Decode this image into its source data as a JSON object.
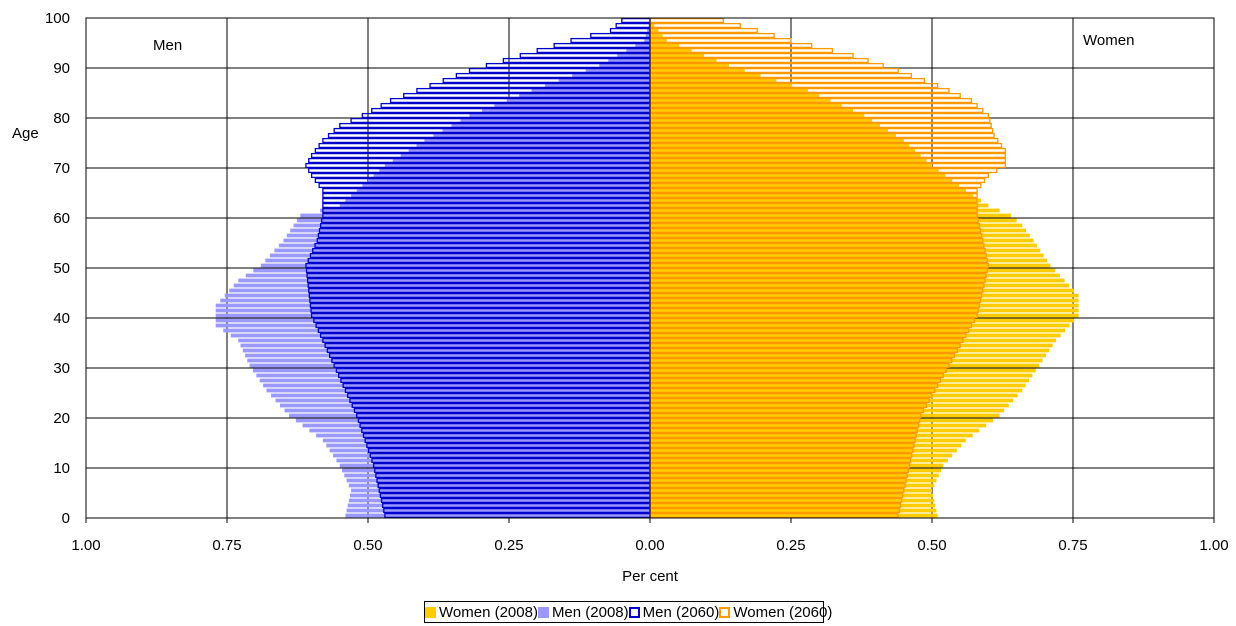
{
  "chart_data": {
    "type": "bar",
    "orientation": "horizontal-population-pyramid",
    "title": "",
    "xlabel": "Per cent",
    "ylabel": "Age",
    "corner_labels": {
      "left": "Men",
      "right": "Women"
    },
    "xlim": [
      -1.0,
      1.0
    ],
    "ylim": [
      0,
      100
    ],
    "x_ticks": [
      -1.0,
      -0.75,
      -0.5,
      -0.25,
      0,
      0.25,
      0.5,
      0.75,
      1.0
    ],
    "x_tick_labels": [
      "1.00",
      "0.75",
      "0.50",
      "0.25",
      "0.00",
      "0.25",
      "0.50",
      "0.75",
      "1.00"
    ],
    "y_ticks": [
      0,
      10,
      20,
      30,
      40,
      50,
      60,
      70,
      80,
      90,
      100
    ],
    "y_tick_labels": [
      "0",
      "10",
      "20",
      "30",
      "40",
      "50",
      "60",
      "70",
      "80",
      "90",
      "100"
    ],
    "grid": true,
    "legend_position": "bottom",
    "ages_from": 0,
    "ages_to": 99,
    "series": [
      {
        "name": "Women (2008)",
        "side": "right",
        "style": "filled",
        "color": "#FFCC00",
        "profile": [
          [
            0,
            0.51
          ],
          [
            5,
            0.5
          ],
          [
            10,
            0.52
          ],
          [
            15,
            0.56
          ],
          [
            20,
            0.62
          ],
          [
            25,
            0.66
          ],
          [
            30,
            0.69
          ],
          [
            35,
            0.72
          ],
          [
            40,
            0.76
          ],
          [
            44,
            0.76
          ],
          [
            50,
            0.71
          ],
          [
            55,
            0.68
          ],
          [
            58,
            0.66
          ],
          [
            60,
            0.64
          ],
          [
            62,
            0.6
          ],
          [
            65,
            0.56
          ],
          [
            70,
            0.5
          ],
          [
            75,
            0.45
          ],
          [
            80,
            0.38
          ],
          [
            85,
            0.28
          ],
          [
            90,
            0.14
          ],
          [
            95,
            0.03
          ],
          [
            99,
            0.0
          ]
        ]
      },
      {
        "name": "Men (2008)",
        "side": "left",
        "style": "filled",
        "color": "#9999FF",
        "profile": [
          [
            0,
            0.54
          ],
          [
            5,
            0.53
          ],
          [
            10,
            0.55
          ],
          [
            15,
            0.58
          ],
          [
            20,
            0.64
          ],
          [
            25,
            0.68
          ],
          [
            30,
            0.71
          ],
          [
            35,
            0.73
          ],
          [
            38,
            0.77
          ],
          [
            42,
            0.77
          ],
          [
            47,
            0.73
          ],
          [
            50,
            0.69
          ],
          [
            55,
            0.65
          ],
          [
            60,
            0.62
          ],
          [
            62,
            0.55
          ],
          [
            65,
            0.52
          ],
          [
            70,
            0.47
          ],
          [
            75,
            0.4
          ],
          [
            80,
            0.32
          ],
          [
            85,
            0.21
          ],
          [
            90,
            0.09
          ],
          [
            95,
            0.01
          ],
          [
            99,
            0.0
          ]
        ]
      },
      {
        "name": "Men (2060)",
        "side": "left",
        "style": "outline",
        "color": "#0000CC",
        "profile": [
          [
            0,
            0.47
          ],
          [
            10,
            0.49
          ],
          [
            20,
            0.52
          ],
          [
            30,
            0.56
          ],
          [
            40,
            0.6
          ],
          [
            50,
            0.61
          ],
          [
            55,
            0.59
          ],
          [
            60,
            0.58
          ],
          [
            65,
            0.58
          ],
          [
            68,
            0.6
          ],
          [
            70,
            0.61
          ],
          [
            72,
            0.6
          ],
          [
            75,
            0.58
          ],
          [
            78,
            0.55
          ],
          [
            80,
            0.51
          ],
          [
            83,
            0.46
          ],
          [
            86,
            0.39
          ],
          [
            89,
            0.32
          ],
          [
            92,
            0.23
          ],
          [
            95,
            0.14
          ],
          [
            97,
            0.07
          ],
          [
            99,
            0.05
          ]
        ]
      },
      {
        "name": "Women (2060)",
        "side": "right",
        "style": "outline",
        "color": "#FF9900",
        "profile": [
          [
            0,
            0.44
          ],
          [
            10,
            0.46
          ],
          [
            20,
            0.48
          ],
          [
            30,
            0.53
          ],
          [
            40,
            0.58
          ],
          [
            50,
            0.6
          ],
          [
            55,
            0.59
          ],
          [
            60,
            0.58
          ],
          [
            65,
            0.58
          ],
          [
            68,
            0.6
          ],
          [
            70,
            0.63
          ],
          [
            73,
            0.63
          ],
          [
            76,
            0.61
          ],
          [
            80,
            0.6
          ],
          [
            83,
            0.57
          ],
          [
            86,
            0.51
          ],
          [
            89,
            0.44
          ],
          [
            92,
            0.36
          ],
          [
            95,
            0.25
          ],
          [
            97,
            0.19
          ],
          [
            99,
            0.13
          ]
        ]
      }
    ]
  }
}
